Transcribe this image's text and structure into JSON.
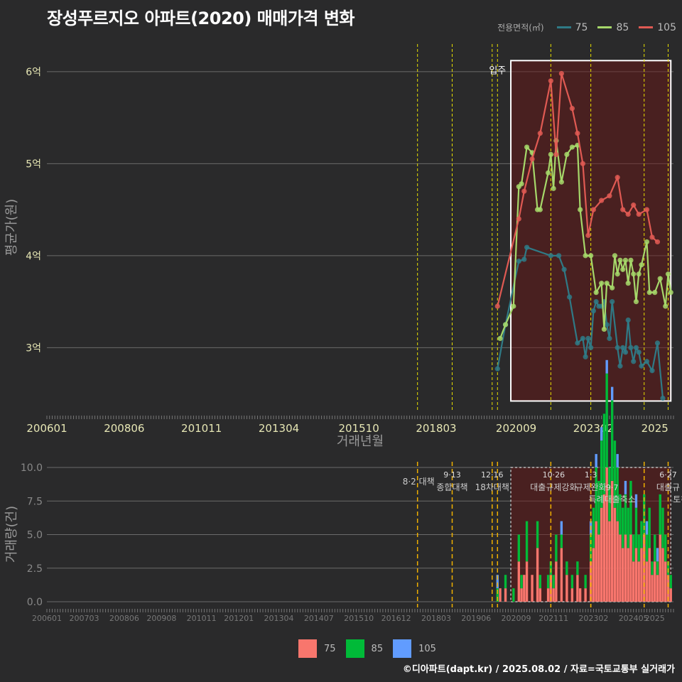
{
  "chart_data": [
    {
      "type": "line",
      "title": "장성푸르지오 아파트(2020) 매매가격 변화",
      "xlabel": "거래년월",
      "ylabel": "평균가(원)",
      "ylim": [
        2.3,
        6.3
      ],
      "y_ticks": [
        {
          "v": 3,
          "label": "3억"
        },
        {
          "v": 4,
          "label": "4억"
        },
        {
          "v": 5,
          "label": "5억"
        },
        {
          "v": 6,
          "label": "6억"
        }
      ],
      "x_ticks": [
        "200601",
        "200806",
        "201011",
        "201304",
        "201510",
        "201803",
        "202009",
        "202302",
        "2025"
      ],
      "legend_title": "전용면적(㎡)",
      "event_lines": [
        "2017.08",
        "2018.09",
        "2019.12",
        "2020.02",
        "2021.10",
        "2023.01",
        "2024.09",
        "2025.06"
      ],
      "occupancy_label": "입주",
      "occupancy_month": "2020.02",
      "highlight_range": [
        "2020.07",
        "2025.07"
      ],
      "series": [
        {
          "name": "75",
          "color": "#2f7a86",
          "points": [
            [
              "2020.02",
              2.77
            ],
            [
              "2020.05",
              3.25
            ],
            [
              "2020.10",
              3.94
            ],
            [
              "2020.12",
              3.96
            ],
            [
              "2021.01",
              4.09
            ],
            [
              "2021.10",
              4.0
            ],
            [
              "2022.01",
              4.0
            ],
            [
              "2022.03",
              3.85
            ],
            [
              "2022.05",
              3.55
            ],
            [
              "2022.08",
              3.05
            ],
            [
              "2022.10",
              3.1
            ],
            [
              "2022.11",
              2.9
            ],
            [
              "2022.12",
              3.1
            ],
            [
              "2023.01",
              3.0
            ],
            [
              "2023.02",
              3.4
            ],
            [
              "2023.03",
              3.5
            ],
            [
              "2023.04",
              3.45
            ],
            [
              "2023.05",
              3.45
            ],
            [
              "2023.06",
              3.5
            ],
            [
              "2023.07",
              3.25
            ],
            [
              "2023.08",
              3.1
            ],
            [
              "2023.09",
              3.5
            ],
            [
              "2023.11",
              3.0
            ],
            [
              "2023.12",
              2.8
            ],
            [
              "2024.01",
              3.0
            ],
            [
              "2024.02",
              2.95
            ],
            [
              "2024.03",
              3.3
            ],
            [
              "2024.04",
              3.0
            ],
            [
              "2024.05",
              2.85
            ],
            [
              "2024.06",
              3.0
            ],
            [
              "2024.07",
              2.95
            ],
            [
              "2024.08",
              2.8
            ],
            [
              "2024.10",
              2.85
            ],
            [
              "2024.12",
              2.75
            ],
            [
              "2025.02",
              3.05
            ],
            [
              "2025.04",
              2.45
            ]
          ]
        },
        {
          "name": "85",
          "color": "#a6d86a",
          "points": [
            [
              "2020.03",
              3.1
            ],
            [
              "2020.05",
              3.25
            ],
            [
              "2020.08",
              3.45
            ],
            [
              "2020.10",
              4.75
            ],
            [
              "2020.11",
              4.78
            ],
            [
              "2021.01",
              5.18
            ],
            [
              "2021.03",
              5.12
            ],
            [
              "2021.05",
              4.5
            ],
            [
              "2021.06",
              4.5
            ],
            [
              "2021.09",
              4.9
            ],
            [
              "2021.10",
              5.1
            ],
            [
              "2021.11",
              4.73
            ],
            [
              "2021.12",
              5.25
            ],
            [
              "2022.02",
              4.8
            ],
            [
              "2022.04",
              5.1
            ],
            [
              "2022.06",
              5.18
            ],
            [
              "2022.08",
              5.2
            ],
            [
              "2022.09",
              4.5
            ],
            [
              "2022.11",
              4.0
            ],
            [
              "2023.01",
              4.0
            ],
            [
              "2023.03",
              3.6
            ],
            [
              "2023.05",
              3.7
            ],
            [
              "2023.06",
              3.2
            ],
            [
              "2023.07",
              3.7
            ],
            [
              "2023.09",
              3.65
            ],
            [
              "2023.10",
              4.0
            ],
            [
              "2023.11",
              3.8
            ],
            [
              "2023.12",
              3.95
            ],
            [
              "2024.01",
              3.85
            ],
            [
              "2024.02",
              3.95
            ],
            [
              "2024.03",
              3.7
            ],
            [
              "2024.04",
              3.95
            ],
            [
              "2024.05",
              3.8
            ],
            [
              "2024.06",
              3.5
            ],
            [
              "2024.07",
              3.8
            ],
            [
              "2024.08",
              3.9
            ],
            [
              "2024.10",
              4.15
            ],
            [
              "2024.11",
              3.6
            ],
            [
              "2025.01",
              3.6
            ],
            [
              "2025.03",
              3.75
            ],
            [
              "2025.05",
              3.45
            ],
            [
              "2025.06",
              3.8
            ],
            [
              "2025.07",
              3.6
            ]
          ]
        },
        {
          "name": "105",
          "color": "#e05a53",
          "points": [
            [
              "2020.02",
              3.45
            ],
            [
              "2020.10",
              4.4
            ],
            [
              "2020.12",
              4.7
            ],
            [
              "2021.03",
              5.05
            ],
            [
              "2021.06",
              5.33
            ],
            [
              "2021.10",
              5.9
            ],
            [
              "2021.12",
              5.1
            ],
            [
              "2022.02",
              5.98
            ],
            [
              "2022.06",
              5.6
            ],
            [
              "2022.08",
              5.33
            ],
            [
              "2022.10",
              5.0
            ],
            [
              "2022.12",
              4.22
            ],
            [
              "2023.02",
              4.5
            ],
            [
              "2023.05",
              4.6
            ],
            [
              "2023.08",
              4.65
            ],
            [
              "2023.11",
              4.85
            ],
            [
              "2024.01",
              4.5
            ],
            [
              "2024.03",
              4.45
            ],
            [
              "2024.05",
              4.55
            ],
            [
              "2024.07",
              4.45
            ],
            [
              "2024.10",
              4.5
            ],
            [
              "2024.12",
              4.2
            ],
            [
              "2025.02",
              4.15
            ]
          ]
        }
      ]
    },
    {
      "type": "bar",
      "ylabel": "거래량(건)",
      "ylim": [
        0,
        10
      ],
      "y_ticks": [
        "0.0",
        "2.5",
        "5.0",
        "7.5",
        "10.0"
      ],
      "x_ticks": [
        "200601",
        "200703",
        "200806",
        "200908",
        "201011",
        "201201",
        "201304",
        "201407",
        "201510",
        "201612",
        "201803",
        "201906",
        "202009",
        "202111",
        "202302",
        "202405",
        "2025"
      ],
      "highlight_range": [
        "2020.07",
        "2025.07"
      ],
      "events": [
        {
          "month": "2017.08",
          "date": "8·2",
          "label": "대책"
        },
        {
          "month": "2018.09",
          "date": "9·13",
          "label": "종합대책"
        },
        {
          "month": "2019.12",
          "date": "12·16",
          "label": "18차대책"
        },
        {
          "month": "2020.02",
          "date": "",
          "label": ""
        },
        {
          "month": "2021.10",
          "date": "10·26",
          "label": "대출규제강화"
        },
        {
          "month": "2023.01",
          "date": "1·3",
          "label": "규제완화"
        },
        {
          "month": "2023.01",
          "date": "9·7",
          "label": "특례대출축소"
        },
        {
          "month": "2024.09",
          "date": "",
          "label": "토허제 해제"
        },
        {
          "month": "2025.06",
          "date": "6·27",
          "label": "대출규"
        }
      ],
      "series_names": [
        "75",
        "85",
        "105"
      ],
      "series_colors": [
        "#f8766d",
        "#00ba38",
        "#619cff"
      ],
      "bars": [
        [
          "2020.02",
          0,
          1,
          1
        ],
        [
          "2020.03",
          1,
          0,
          0
        ],
        [
          "2020.05",
          1,
          1,
          0
        ],
        [
          "2020.08",
          0,
          1,
          0
        ],
        [
          "2020.10",
          3,
          2,
          0
        ],
        [
          "2020.11",
          1,
          1,
          0
        ],
        [
          "2020.12",
          2,
          0,
          0
        ],
        [
          "2021.01",
          3,
          3,
          0
        ],
        [
          "2021.03",
          2,
          0,
          0
        ],
        [
          "2021.05",
          4,
          2,
          0
        ],
        [
          "2021.06",
          1,
          1,
          0
        ],
        [
          "2021.09",
          1,
          1,
          0
        ],
        [
          "2021.10",
          2,
          1,
          0
        ],
        [
          "2021.11",
          1,
          1,
          0
        ],
        [
          "2021.12",
          3,
          2,
          0
        ],
        [
          "2022.02",
          4,
          1,
          1
        ],
        [
          "2022.04",
          2,
          1,
          0
        ],
        [
          "2022.06",
          1,
          1,
          0
        ],
        [
          "2022.08",
          2,
          1,
          0
        ],
        [
          "2022.09",
          1,
          0,
          0
        ],
        [
          "2022.11",
          1,
          1,
          0
        ],
        [
          "2023.01",
          3,
          2,
          1
        ],
        [
          "2023.02",
          4,
          3,
          0
        ],
        [
          "2023.03",
          6,
          4,
          1
        ],
        [
          "2023.04",
          5,
          4,
          0
        ],
        [
          "2023.05",
          7,
          5,
          1
        ],
        [
          "2023.06",
          8,
          6,
          0
        ],
        [
          "2023.07",
          10,
          7,
          1
        ],
        [
          "2023.08",
          6,
          4,
          0
        ],
        [
          "2023.09",
          9,
          6,
          1
        ],
        [
          "2023.10",
          7,
          5,
          0
        ],
        [
          "2023.11",
          6,
          4,
          1
        ],
        [
          "2023.12",
          5,
          3,
          0
        ],
        [
          "2024.01",
          4,
          3,
          0
        ],
        [
          "2024.02",
          5,
          3,
          1
        ],
        [
          "2024.03",
          4,
          3,
          0
        ],
        [
          "2024.04",
          5,
          4,
          0
        ],
        [
          "2024.05",
          3,
          2,
          0
        ],
        [
          "2024.06",
          4,
          3,
          1
        ],
        [
          "2024.07",
          3,
          2,
          0
        ],
        [
          "2024.08",
          4,
          2,
          0
        ],
        [
          "2024.09",
          5,
          3,
          0
        ],
        [
          "2024.10",
          3,
          2,
          1
        ],
        [
          "2024.11",
          4,
          3,
          0
        ],
        [
          "2024.12",
          2,
          1,
          0
        ],
        [
          "2025.01",
          3,
          2,
          0
        ],
        [
          "2025.02",
          2,
          1,
          1
        ],
        [
          "2025.03",
          5,
          3,
          0
        ],
        [
          "2025.04",
          4,
          3,
          0
        ],
        [
          "2025.05",
          3,
          2,
          0
        ],
        [
          "2025.06",
          2,
          1,
          0
        ],
        [
          "2025.07",
          1,
          1,
          0
        ]
      ]
    }
  ],
  "legend_bottom": [
    "75",
    "85",
    "105"
  ],
  "caption": "©디아파트(dapt.kr) / 2025.08.02 / 자료=국토교통부 실거래가"
}
